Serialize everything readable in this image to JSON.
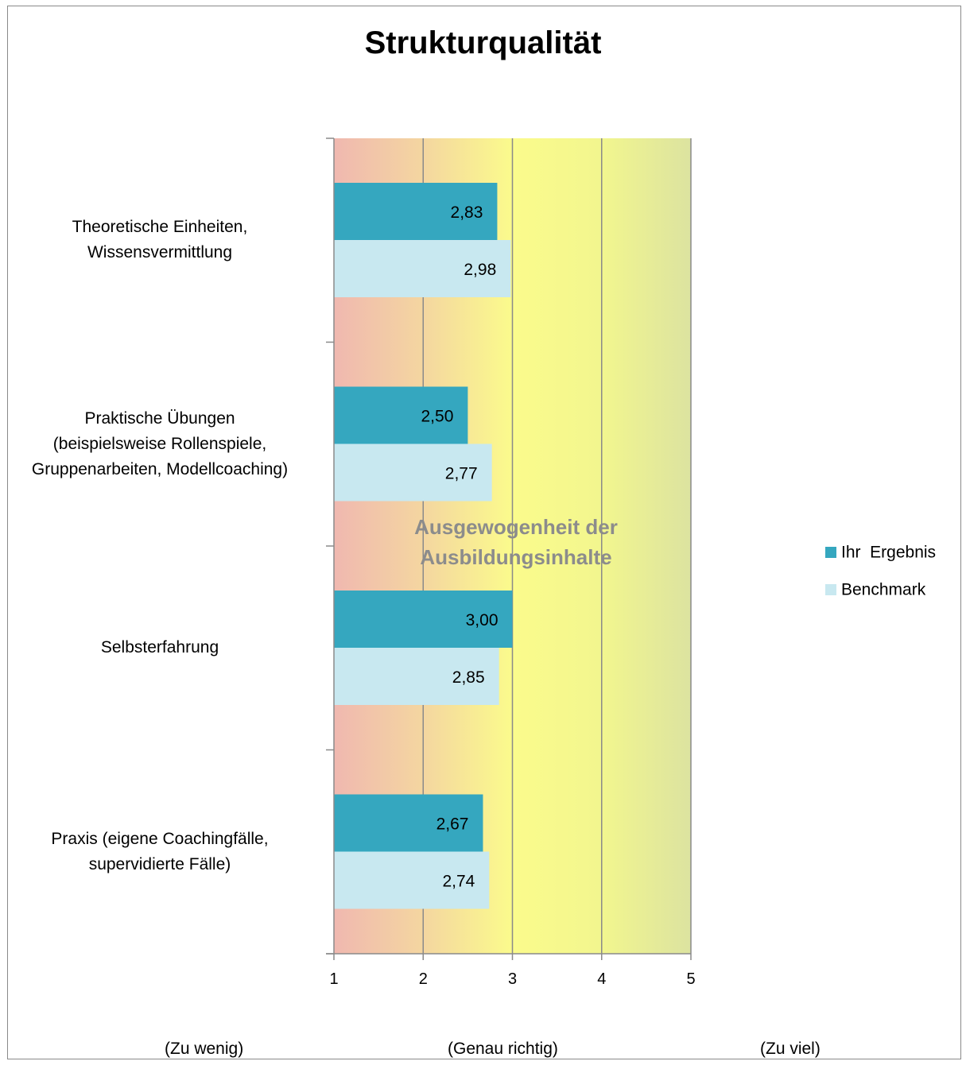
{
  "chart_data": {
    "type": "bar",
    "orientation": "horizontal",
    "title": "Strukturqualität",
    "annotation_lines": [
      "Ausgewogenheit der",
      "Ausbildungsinhalte"
    ],
    "categories": [
      [
        "Theoretische Einheiten,",
        "Wissensvermittlung"
      ],
      [
        "Praktische Übungen",
        "(beispielsweise Rollenspiele,",
        "Gruppenarbeiten, Modellcoaching)"
      ],
      [
        "Selbsterfahrung"
      ],
      [
        "Praxis (eigene Coachingfälle,",
        "supervidierte Fälle)"
      ]
    ],
    "series": [
      {
        "name": "Ihr  Ergebnis",
        "color": "#35a7bf",
        "values": [
          2.83,
          2.5,
          3.0,
          2.67
        ],
        "labels": [
          "2,83",
          "2,50",
          "3,00",
          "2,67"
        ]
      },
      {
        "name": "Benchmark",
        "color": "#c8e8f0",
        "values": [
          2.98,
          2.77,
          2.85,
          2.74
        ],
        "labels": [
          "2,98",
          "2,77",
          "2,85",
          "2,74"
        ]
      }
    ],
    "xlim": [
      1,
      5
    ],
    "xticks": [
      "1",
      "2",
      "3",
      "4",
      "5"
    ],
    "scale_labels": [
      "(Zu wenig)",
      "(Genau richtig)",
      "(Zu viel)"
    ],
    "grid": true,
    "legend_position": "right",
    "background_gradient": [
      "#f0b8b0",
      "#f4d6a0",
      "#fbfb8c",
      "#f2f68e",
      "#dce3a0"
    ]
  }
}
